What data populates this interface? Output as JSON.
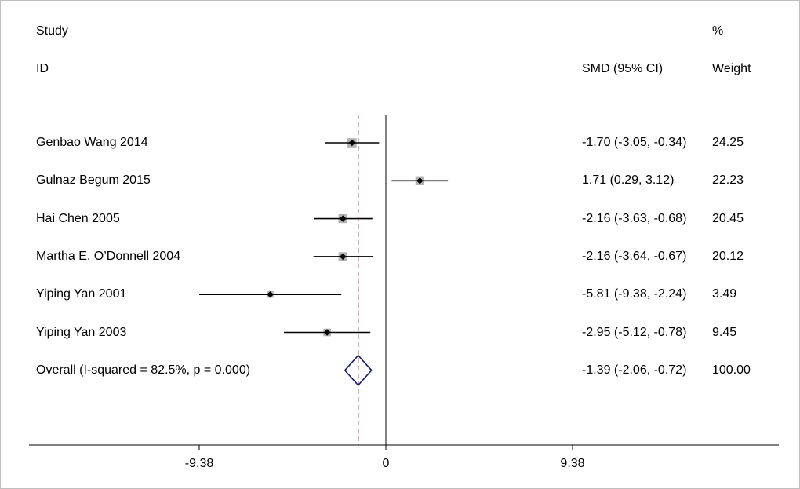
{
  "chart_data": {
    "type": "forest",
    "header": {
      "study_label": "Study",
      "id_label": "ID",
      "effect_label": "SMD (95% CI)",
      "weight_top": "%",
      "weight_label": "Weight"
    },
    "studies": [
      {
        "name": "Genbao Wang 2014",
        "smd": -1.7,
        "lo": -3.05,
        "hi": -0.34,
        "ci_text": "-1.70 (-3.05, -0.34)",
        "weight": 24.25,
        "weight_text": "24.25"
      },
      {
        "name": "Gulnaz Begum 2015",
        "smd": 1.71,
        "lo": 0.29,
        "hi": 3.12,
        "ci_text": "1.71 (0.29, 3.12)",
        "weight": 22.23,
        "weight_text": "22.23"
      },
      {
        "name": "Hai Chen 2005",
        "smd": -2.16,
        "lo": -3.63,
        "hi": -0.68,
        "ci_text": "-2.16 (-3.63, -0.68)",
        "weight": 20.45,
        "weight_text": "20.45"
      },
      {
        "name": "Martha E. O’Donnell 2004",
        "smd": -2.16,
        "lo": -3.64,
        "hi": -0.67,
        "ci_text": "-2.16 (-3.64, -0.67)",
        "weight": 20.12,
        "weight_text": "20.12"
      },
      {
        "name": "Yiping Yan 2001",
        "smd": -5.81,
        "lo": -9.38,
        "hi": -2.24,
        "ci_text": "-5.81 (-9.38, -2.24)",
        "weight": 3.49,
        "weight_text": "3.49"
      },
      {
        "name": "Yiping Yan 2003",
        "smd": -2.95,
        "lo": -5.12,
        "hi": -0.78,
        "ci_text": "-2.95 (-5.12, -0.78)",
        "weight": 9.45,
        "weight_text": "9.45"
      }
    ],
    "overall": {
      "label": "Overall  (I-squared = 82.5%, p = 0.000)",
      "smd": -1.39,
      "lo": -2.06,
      "hi": -0.72,
      "ci_text": "-1.39 (-2.06, -0.72)",
      "weight_text": "100.00"
    },
    "x_ticks": [
      {
        "value": -9.38,
        "label": "-9.38"
      },
      {
        "value": 0,
        "label": "0"
      },
      {
        "value": 9.38,
        "label": "9.38"
      }
    ],
    "xlim": [
      -18.76,
      18.76
    ],
    "null_line": 0,
    "colors": {
      "ci_line": "#000000",
      "point": "#000000",
      "weight_box": "#b3b3b3",
      "overall_line": "#b22222",
      "diamond": "#1a1a6e"
    }
  }
}
